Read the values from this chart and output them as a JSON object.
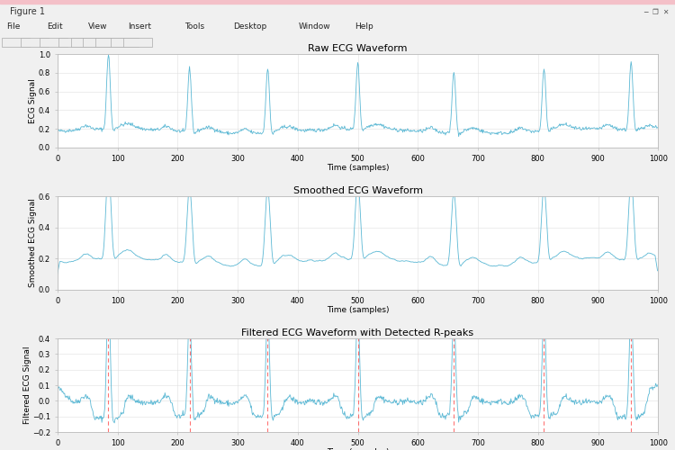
{
  "title1": "Raw ECG Waveform",
  "title2": "Smoothed ECG Waveform",
  "title3": "Filtered ECG Waveform with Detected R-peaks",
  "xlabel": "Time (samples)",
  "ylabel1": "ECG Signal",
  "ylabel2": "Smoothed ECG Signal",
  "ylabel3": "Filtered ECG Signal",
  "xlim": [
    0,
    1000
  ],
  "ylim1": [
    0,
    1
  ],
  "ylim2": [
    0,
    0.6
  ],
  "ylim3": [
    -0.2,
    0.4
  ],
  "r_peak_positions": [
    85,
    220,
    350,
    500,
    660,
    810,
    955
  ],
  "line_color": "#5BB8D4",
  "rpeak_color": "#FF4444",
  "bg_color": "#F0F0F0",
  "plot_bg": "#FFFFFF",
  "title_fontsize": 8,
  "label_fontsize": 6.5,
  "tick_fontsize": 6,
  "window_title_bg": "#F8F8F8",
  "window_title_text": "Figure 1",
  "menu_items": [
    "File",
    "Edit",
    "View",
    "Insert",
    "Tools",
    "Desktop",
    "Window",
    "Help"
  ],
  "yticks1": [
    0,
    0.2,
    0.4,
    0.6,
    0.8,
    1.0
  ],
  "yticks2": [
    0,
    0.2,
    0.4,
    0.6
  ],
  "yticks3": [
    -0.2,
    -0.1,
    0.0,
    0.1,
    0.2,
    0.3,
    0.4
  ],
  "xticks": [
    0,
    100,
    200,
    300,
    400,
    500,
    600,
    700,
    800,
    900,
    1000
  ]
}
